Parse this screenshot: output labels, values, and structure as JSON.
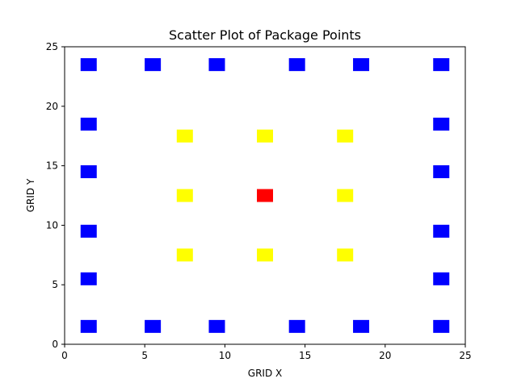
{
  "chart_data": {
    "type": "scatter",
    "title": "Scatter Plot of Package Points",
    "xlabel": "GRID X",
    "ylabel": "GRID Y",
    "xlim": [
      0,
      25
    ],
    "ylim": [
      0,
      25
    ],
    "xticks": [
      0,
      5,
      10,
      15,
      20,
      25
    ],
    "yticks": [
      0,
      5,
      10,
      15,
      20,
      25
    ],
    "grid": false,
    "marker": "square",
    "series": [
      {
        "color": "#0000ff",
        "points": [
          {
            "x": 1.5,
            "y": 1.5
          },
          {
            "x": 5.5,
            "y": 1.5
          },
          {
            "x": 9.5,
            "y": 1.5
          },
          {
            "x": 14.5,
            "y": 1.5
          },
          {
            "x": 18.5,
            "y": 1.5
          },
          {
            "x": 23.5,
            "y": 1.5
          },
          {
            "x": 1.5,
            "y": 5.5
          },
          {
            "x": 23.5,
            "y": 5.5
          },
          {
            "x": 1.5,
            "y": 9.5
          },
          {
            "x": 23.5,
            "y": 9.5
          },
          {
            "x": 1.5,
            "y": 14.5
          },
          {
            "x": 23.5,
            "y": 14.5
          },
          {
            "x": 1.5,
            "y": 18.5
          },
          {
            "x": 23.5,
            "y": 18.5
          },
          {
            "x": 1.5,
            "y": 23.5
          },
          {
            "x": 5.5,
            "y": 23.5
          },
          {
            "x": 9.5,
            "y": 23.5
          },
          {
            "x": 14.5,
            "y": 23.5
          },
          {
            "x": 18.5,
            "y": 23.5
          },
          {
            "x": 23.5,
            "y": 23.5
          }
        ]
      },
      {
        "color": "#ffff00",
        "points": [
          {
            "x": 7.5,
            "y": 7.5
          },
          {
            "x": 12.5,
            "y": 7.5
          },
          {
            "x": 17.5,
            "y": 7.5
          },
          {
            "x": 7.5,
            "y": 12.5
          },
          {
            "x": 17.5,
            "y": 12.5
          },
          {
            "x": 7.5,
            "y": 17.5
          },
          {
            "x": 12.5,
            "y": 17.5
          },
          {
            "x": 17.5,
            "y": 17.5
          }
        ]
      },
      {
        "color": "#ff0000",
        "points": [
          {
            "x": 12.5,
            "y": 12.5
          }
        ]
      }
    ]
  }
}
